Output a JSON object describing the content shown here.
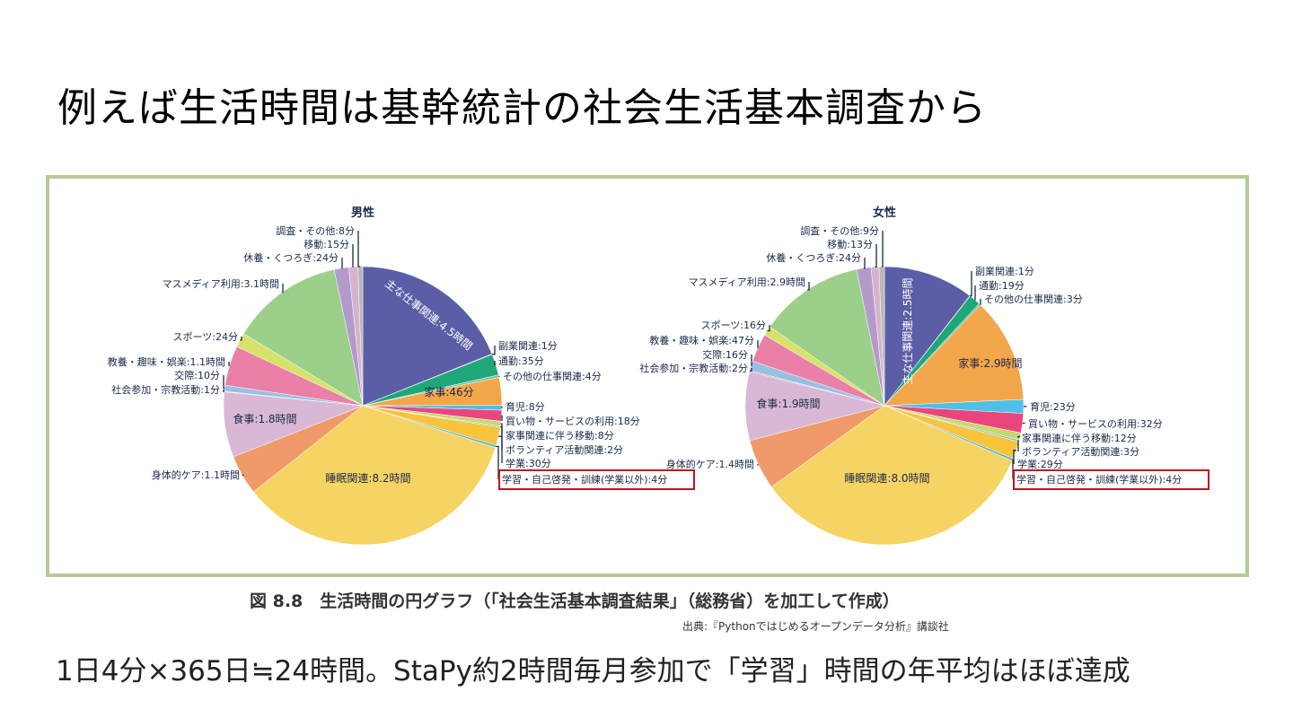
{
  "title": "例えば生活時間は基幹統計の社会生活基本調査から",
  "caption": "図 8.8　生活時間の円グラフ（「社会生活基本調査結果」（総務省）を加工して作成）",
  "source": "出典:『Pythonではじめるオープンデータ分析』講談社",
  "note": "1日4分×365日≒24時間。StaPy約2時間毎月参加で「学習」時間の年平均はほぼ達成",
  "chart_data": [
    {
      "type": "pie",
      "title": "男性",
      "unit": "minutes",
      "slices": [
        {
          "label": "主な仕事関連:4.5時間",
          "value": 270,
          "color": "#5b5ea6"
        },
        {
          "label": "副業関連:1分",
          "value": 1,
          "color": "#2e8b57"
        },
        {
          "label": "通勤:35分",
          "value": 35,
          "color": "#1fa77a"
        },
        {
          "label": "その他の仕事関連:4分",
          "value": 4,
          "color": "#74c2a4"
        },
        {
          "label": "家事:46分",
          "value": 46,
          "color": "#f4a64a"
        },
        {
          "label": "育児:8分",
          "value": 8,
          "color": "#4fc0e8"
        },
        {
          "label": "買い物・サービスの利用:18分",
          "value": 18,
          "color": "#e8467c"
        },
        {
          "label": "家事関連に伴う移動:8分",
          "value": 8,
          "color": "#c8d870"
        },
        {
          "label": "ボランティア活動関連:2分",
          "value": 2,
          "color": "#6fc2c2"
        },
        {
          "label": "学業:30分",
          "value": 30,
          "color": "#f7c43c"
        },
        {
          "label": "学習・自己啓発・訓練(学業以外):4分",
          "value": 4,
          "color": "#5bb5d5"
        },
        {
          "label": "睡眠関連:8.2時間",
          "value": 492,
          "color": "#f6d463"
        },
        {
          "label": "身体的ケア:1.1時間",
          "value": 66,
          "color": "#f09a6a"
        },
        {
          "label": "食事:1.8時間",
          "value": 108,
          "color": "#d9b8d6"
        },
        {
          "label": "社会参加・宗教活動:1分",
          "value": 1,
          "color": "#b3a0c8"
        },
        {
          "label": "交際:10分",
          "value": 10,
          "color": "#9ac0e0"
        },
        {
          "label": "教養・趣味・娯楽:1.1時間",
          "value": 66,
          "color": "#ea7fa8"
        },
        {
          "label": "スポーツ:24分",
          "value": 24,
          "color": "#d6e26a"
        },
        {
          "label": "マスメディア利用:3.1時間",
          "value": 186,
          "color": "#9ccf8a"
        },
        {
          "label": "休養・くつろぎ:24分",
          "value": 24,
          "color": "#b49acb"
        },
        {
          "label": "移動:15分",
          "value": 15,
          "color": "#d6b3cc"
        },
        {
          "label": "調査・その他:8分",
          "value": 8,
          "color": "#b8b8b8"
        }
      ],
      "highlight": "学習・自己啓発・訓練(学業以外):4分"
    },
    {
      "type": "pie",
      "title": "女性",
      "unit": "minutes",
      "slices": [
        {
          "label": "主な仕事関連:2.5時間",
          "value": 150,
          "color": "#5b5ea6"
        },
        {
          "label": "副業関連:1分",
          "value": 1,
          "color": "#2e8b57"
        },
        {
          "label": "通勤:19分",
          "value": 19,
          "color": "#1fa77a"
        },
        {
          "label": "その他の仕事関連:3分",
          "value": 3,
          "color": "#74c2a4"
        },
        {
          "label": "家事:2.9時間",
          "value": 174,
          "color": "#f4a64a"
        },
        {
          "label": "育児:23分",
          "value": 23,
          "color": "#4fc0e8"
        },
        {
          "label": "買い物・サービスの利用:32分",
          "value": 32,
          "color": "#e8467c"
        },
        {
          "label": "家事関連に伴う移動:12分",
          "value": 12,
          "color": "#c8d870"
        },
        {
          "label": "ボランティア活動関連:3分",
          "value": 3,
          "color": "#6fc2c2"
        },
        {
          "label": "学業:29分",
          "value": 29,
          "color": "#f7c43c"
        },
        {
          "label": "学習・自己啓発・訓練(学業以外):4分",
          "value": 4,
          "color": "#5bb5d5"
        },
        {
          "label": "睡眠関連:8.0時間",
          "value": 480,
          "color": "#f6d463"
        },
        {
          "label": "身体的ケア:1.4時間",
          "value": 84,
          "color": "#f09a6a"
        },
        {
          "label": "食事:1.9時間",
          "value": 114,
          "color": "#d9b8d6"
        },
        {
          "label": "社会参加・宗教活動:2分",
          "value": 2,
          "color": "#b3a0c8"
        },
        {
          "label": "交際:16分",
          "value": 16,
          "color": "#9ac0e0"
        },
        {
          "label": "教養・趣味・娯楽:47分",
          "value": 47,
          "color": "#ea7fa8"
        },
        {
          "label": "スポーツ:16分",
          "value": 16,
          "color": "#d6e26a"
        },
        {
          "label": "マスメディア利用:2.9時間",
          "value": 174,
          "color": "#9ccf8a"
        },
        {
          "label": "休養・くつろぎ:24分",
          "value": 24,
          "color": "#b49acb"
        },
        {
          "label": "移動:13分",
          "value": 13,
          "color": "#d6b3cc"
        },
        {
          "label": "調査・その他:9分",
          "value": 9,
          "color": "#b8b8b8"
        }
      ],
      "highlight": "学習・自己啓発・訓練(学業以外):4分"
    }
  ]
}
